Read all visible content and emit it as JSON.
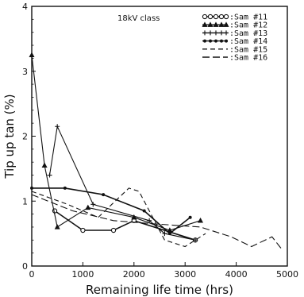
{
  "chart_data": {
    "type": "line",
    "title": "",
    "annotation": "18kV class",
    "xlabel": "Remaining life time (hrs)",
    "ylabel": "Tip up tan (%)",
    "xlim": [
      0,
      5000
    ],
    "ylim": [
      0,
      4
    ],
    "x_ticks": [
      "0",
      "1000",
      "2000",
      "3000",
      "4000",
      "5000"
    ],
    "y_ticks": [
      "0",
      "1",
      "2",
      "3",
      "4"
    ],
    "legend_position": "top-right",
    "series": [
      {
        "name": ":Sam #11",
        "marker": "circle",
        "dash": "",
        "x": [
          450,
          1000,
          1600,
          2000,
          3200
        ],
        "y": [
          0.85,
          0.55,
          0.55,
          0.7,
          0.4
        ]
      },
      {
        "name": ":Sam #12",
        "marker": "triangle",
        "dash": "",
        "x": [
          0,
          250,
          500,
          1100,
          2000,
          2700,
          3300
        ],
        "y": [
          3.25,
          1.55,
          0.6,
          0.9,
          0.75,
          0.55,
          0.7
        ]
      },
      {
        "name": ":Sam #13",
        "marker": "plus",
        "dash": "",
        "x": [
          350,
          500,
          1200,
          2300,
          2600,
          3200
        ],
        "y": [
          1.4,
          2.15,
          0.95,
          0.7,
          0.5,
          0.4
        ]
      },
      {
        "name": ":Sam #14",
        "marker": "dot",
        "dash": "",
        "x": [
          0,
          650,
          1400,
          2200,
          2700,
          3100
        ],
        "y": [
          1.2,
          1.2,
          1.1,
          0.85,
          0.5,
          0.75
        ]
      },
      {
        "name": ":Sam #15",
        "marker": "",
        "dash": "6 4",
        "x": [
          0,
          700,
          1300,
          1900,
          2100,
          2600,
          3000,
          3400
        ],
        "y": [
          1.15,
          0.95,
          0.75,
          1.2,
          1.15,
          0.4,
          0.3,
          0.5
        ]
      },
      {
        "name": ":Sam #16",
        "marker": "",
        "dash": "9 4",
        "x": [
          0,
          800,
          1600,
          2400,
          3300,
          3900,
          4300,
          4700,
          4900
        ],
        "y": [
          1.1,
          0.85,
          0.7,
          0.65,
          0.6,
          0.45,
          0.3,
          0.45,
          0.25
        ]
      }
    ]
  }
}
